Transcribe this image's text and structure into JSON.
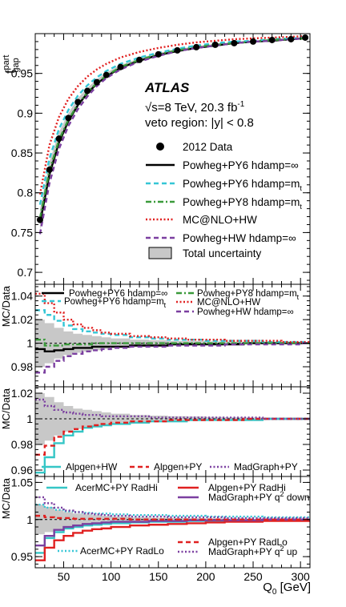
{
  "figure": {
    "xlabel_main": "Q",
    "xlabel_sub": "0",
    "xlabel_unit": " [GeV]"
  },
  "chart_data": [
    {
      "type": "line",
      "panel": "main",
      "ylabel_main": "f",
      "ylabel_sup": "part",
      "ylabel_sub": "gap",
      "xlim": [
        20,
        310
      ],
      "ylim": [
        0.685,
        1.0
      ],
      "grid": false,
      "legend_position": "center-right",
      "x_ticks": [
        50,
        100,
        150,
        200,
        250,
        300
      ],
      "y_ticks": [
        0.7,
        0.75,
        0.8,
        0.85,
        0.9,
        0.95
      ],
      "annotations": {
        "experiment": "ATLAS",
        "energy_prefix": "√s=8 TeV, 20.3 fb",
        "energy_sup": "-1",
        "region": "veto region: |y| < 0.8"
      },
      "x": [
        25,
        35,
        45,
        55,
        65,
        75,
        85,
        95,
        110,
        130,
        150,
        170,
        190,
        210,
        230,
        250,
        270,
        290,
        305
      ],
      "series": [
        {
          "name": "2012 Data",
          "color": "#000000",
          "style": "marker",
          "values": [
            0.766,
            0.829,
            0.868,
            0.894,
            0.914,
            0.928,
            0.939,
            0.948,
            0.958,
            0.967,
            0.974,
            0.979,
            0.983,
            0.986,
            0.988,
            0.99,
            0.992,
            0.993,
            0.995
          ]
        },
        {
          "name": "Powheg+PY6 hdamp=∞",
          "color": "#000000",
          "style": "solid",
          "values": [
            0.762,
            0.823,
            0.863,
            0.89,
            0.91,
            0.925,
            0.937,
            0.946,
            0.957,
            0.966,
            0.973,
            0.978,
            0.982,
            0.985,
            0.988,
            0.99,
            0.991,
            0.993,
            0.994
          ]
        },
        {
          "name": "Powheg+PY6 hdamp=m",
          "name_sub": "t",
          "color": "#35c6d6",
          "style": "dashed",
          "values": [
            0.785,
            0.843,
            0.88,
            0.904,
            0.922,
            0.935,
            0.945,
            0.953,
            0.962,
            0.97,
            0.976,
            0.981,
            0.985,
            0.988,
            0.99,
            0.991,
            0.993,
            0.994,
            0.995
          ]
        },
        {
          "name": "Powheg+PY8 hdamp=m",
          "name_sub": "t",
          "color": "#3a9a3a",
          "style": "dashdot",
          "values": [
            0.768,
            0.828,
            0.866,
            0.892,
            0.911,
            0.926,
            0.938,
            0.947,
            0.958,
            0.967,
            0.974,
            0.979,
            0.983,
            0.986,
            0.988,
            0.99,
            0.992,
            0.993,
            0.994
          ]
        },
        {
          "name": "MC@NLO+HW",
          "color": "#e02020",
          "style": "dotted",
          "values": [
            0.798,
            0.86,
            0.895,
            0.918,
            0.934,
            0.946,
            0.955,
            0.962,
            0.97,
            0.977,
            0.982,
            0.986,
            0.989,
            0.991,
            0.993,
            0.994,
            0.995,
            0.996,
            0.997
          ]
        },
        {
          "name": "Powheg+HW hdamp=∞",
          "color": "#7b3fa0",
          "style": "dashed",
          "values": [
            0.748,
            0.812,
            0.855,
            0.884,
            0.905,
            0.921,
            0.934,
            0.944,
            0.955,
            0.965,
            0.972,
            0.978,
            0.982,
            0.985,
            0.988,
            0.99,
            0.991,
            0.993,
            0.994
          ]
        }
      ],
      "uncertainty_band": {
        "name": "Total uncertainty",
        "color": "#c8c8c8",
        "rel": [
          0.013,
          0.01,
          0.008,
          0.006,
          0.005,
          0.004,
          0.0035,
          0.003,
          0.0025,
          0.002,
          0.0018,
          0.0015,
          0.0012,
          0.001,
          0.001,
          0.001,
          0.001,
          0.001,
          0.001
        ]
      }
    },
    {
      "type": "line",
      "panel": "ratio-1",
      "ylabel": "MC/Data",
      "xlim": [
        20,
        310
      ],
      "ylim": [
        0.963,
        1.05
      ],
      "y_ticks": [
        0.98,
        1,
        1.02,
        1.04
      ],
      "x_edges": [
        20,
        30,
        40,
        50,
        60,
        70,
        80,
        90,
        100,
        120,
        140,
        160,
        180,
        200,
        220,
        240,
        260,
        280,
        300,
        310
      ],
      "band": [
        0.02,
        0.017,
        0.013,
        0.01,
        0.008,
        0.007,
        0.006,
        0.005,
        0.004,
        0.003,
        0.0025,
        0.002,
        0.0018,
        0.0015,
        0.0012,
        0.001,
        0.001,
        0.001,
        0.001
      ],
      "series": [
        {
          "name": "Powheg+PY6 hdamp=∞",
          "color": "#000000",
          "style": "solid",
          "values": [
            0.995,
            0.993,
            0.994,
            0.995,
            0.996,
            0.996,
            0.997,
            0.997,
            0.997,
            0.998,
            0.998,
            0.999,
            0.999,
            0.999,
            0.999,
            1.0,
            1.0,
            1.0,
            1.0
          ]
        },
        {
          "name": "Powheg+PY6 hdamp=m",
          "name_sub": "t",
          "color": "#35c6d6",
          "style": "dashed",
          "values": [
            1.028,
            1.024,
            1.019,
            1.015,
            1.012,
            1.01,
            1.009,
            1.008,
            1.007,
            1.005,
            1.004,
            1.003,
            1.003,
            1.002,
            1.002,
            1.002,
            1.001,
            1.001,
            1.001
          ]
        },
        {
          "name": "Powheg+PY8 hdamp=m",
          "name_sub": "t",
          "color": "#3a9a3a",
          "style": "dashdot",
          "values": [
            1.003,
            0.998,
            0.998,
            0.999,
            0.999,
            0.999,
            1.0,
            1.0,
            1.0,
            1.0,
            1.0,
            1.0,
            1.0,
            1.0,
            1.0,
            1.0,
            1.0,
            1.0,
            1.0
          ]
        },
        {
          "name": "MC@NLO+HW",
          "color": "#e02020",
          "style": "dotted",
          "values": [
            1.042,
            1.034,
            1.026,
            1.02,
            1.016,
            1.013,
            1.011,
            1.009,
            1.008,
            1.006,
            1.005,
            1.004,
            1.003,
            1.003,
            1.002,
            1.002,
            1.002,
            1.001,
            1.001
          ]
        },
        {
          "name": "Powheg+HW  hdamp=∞",
          "color": "#7b3fa0",
          "style": "dashed",
          "values": [
            0.975,
            0.98,
            0.985,
            0.989,
            0.991,
            0.993,
            0.994,
            0.995,
            0.996,
            0.997,
            0.997,
            0.998,
            0.998,
            0.998,
            0.999,
            0.999,
            0.999,
            0.999,
            1.0
          ]
        }
      ]
    },
    {
      "type": "line",
      "panel": "ratio-2",
      "ylabel": "MC/Data",
      "xlim": [
        20,
        310
      ],
      "ylim": [
        0.955,
        1.025
      ],
      "y_ticks": [
        0.96,
        0.98,
        1,
        1.02
      ],
      "x_edges": [
        20,
        30,
        40,
        50,
        60,
        70,
        80,
        90,
        100,
        120,
        140,
        160,
        180,
        200,
        220,
        240,
        260,
        280,
        300,
        310
      ],
      "band": [
        0.02,
        0.017,
        0.013,
        0.01,
        0.008,
        0.007,
        0.006,
        0.005,
        0.004,
        0.003,
        0.0025,
        0.002,
        0.0018,
        0.0015,
        0.0012,
        0.001,
        0.001,
        0.001,
        0.001
      ],
      "series": [
        {
          "name": "Alpgen+HW",
          "color": "#35c6c6",
          "style": "solid",
          "values": [
            0.958,
            0.97,
            0.981,
            0.987,
            0.99,
            0.993,
            0.994,
            0.995,
            0.996,
            0.997,
            0.998,
            0.998,
            0.999,
            0.999,
            0.999,
            0.999,
            1.0,
            1.0,
            1.0
          ]
        },
        {
          "name": "Alpgen+PY",
          "color": "#e02020",
          "style": "dashed",
          "values": [
            0.972,
            0.979,
            0.986,
            0.99,
            0.992,
            0.994,
            0.995,
            0.996,
            0.997,
            0.998,
            0.998,
            0.999,
            0.999,
            0.999,
            0.999,
            1.0,
            1.0,
            1.0,
            1.0
          ]
        },
        {
          "name": "MadGraph+PY",
          "color": "#7b3fa0",
          "style": "dotted",
          "values": [
            1.015,
            1.01,
            1.007,
            1.005,
            1.004,
            1.003,
            1.003,
            1.002,
            1.002,
            1.002,
            1.001,
            1.001,
            1.001,
            1.001,
            1.001,
            1.001,
            1.0,
            1.0,
            1.0
          ]
        }
      ]
    },
    {
      "type": "line",
      "panel": "ratio-3",
      "ylabel": "MC/Data",
      "xlim": [
        20,
        310
      ],
      "ylim": [
        0.935,
        1.058
      ],
      "y_ticks": [
        0.95,
        1,
        1.05
      ],
      "x_ticks": [
        50,
        100,
        150,
        200,
        250,
        300
      ],
      "x_edges": [
        20,
        30,
        40,
        50,
        60,
        70,
        80,
        90,
        100,
        120,
        140,
        160,
        180,
        200,
        220,
        240,
        260,
        280,
        300,
        310
      ],
      "band": [
        0.02,
        0.017,
        0.013,
        0.01,
        0.008,
        0.007,
        0.006,
        0.005,
        0.004,
        0.003,
        0.0025,
        0.002,
        0.0018,
        0.0015,
        0.0012,
        0.001,
        0.001,
        0.001,
        0.001
      ],
      "series": [
        {
          "name": "AcerMC+PY RadHi",
          "color": "#35c6c6",
          "style": "solid",
          "values": [
            0.955,
            0.975,
            0.983,
            0.988,
            0.99,
            0.992,
            0.993,
            0.994,
            0.995,
            0.996,
            0.997,
            0.997,
            0.998,
            0.998,
            0.999,
            0.999,
            0.999,
            0.999,
            0.999
          ]
        },
        {
          "name": "Alpgen+PY RadHi",
          "color": "#e02020",
          "style": "solid",
          "values": [
            0.945,
            0.962,
            0.972,
            0.978,
            0.982,
            0.985,
            0.987,
            0.988,
            0.99,
            0.992,
            0.993,
            0.994,
            0.995,
            0.996,
            0.997,
            0.997,
            0.998,
            0.998,
            0.998
          ]
        },
        {
          "name": "MadGraph+PY q",
          "name_sup": "2",
          "name_suffix": " down",
          "color": "#7b3fa0",
          "style": "solid",
          "values": [
            0.965,
            0.978,
            0.986,
            0.99,
            0.992,
            0.994,
            0.995,
            0.996,
            0.997,
            0.997,
            0.998,
            0.998,
            0.999,
            0.999,
            0.999,
            0.999,
            1.0,
            1.0,
            1.0
          ]
        },
        {
          "name": "AcerMC+PY RadLo",
          "color": "#35c6d6",
          "style": "dotted",
          "values": [
            1.02,
            1.016,
            1.013,
            1.011,
            1.01,
            1.009,
            1.008,
            1.008,
            1.007,
            1.006,
            1.006,
            1.005,
            1.005,
            1.004,
            1.004,
            1.004,
            1.003,
            1.003,
            1.003
          ]
        },
        {
          "name": "Alpgen+PY RadLo",
          "color": "#e02020",
          "style": "dashed",
          "values": [
            1.005,
            1.003,
            1.002,
            1.002,
            1.001,
            1.001,
            1.001,
            1.001,
            1.001,
            1.0,
            1.0,
            1.0,
            1.0,
            1.0,
            1.0,
            1.0,
            1.0,
            1.0,
            1.0
          ]
        },
        {
          "name": "MadGraph+PY q",
          "name_sup": "2",
          "name_suffix": " up",
          "color": "#7b3fa0",
          "style": "dotted",
          "values": [
            1.03,
            1.022,
            1.016,
            1.012,
            1.01,
            1.008,
            1.007,
            1.006,
            1.005,
            1.004,
            1.004,
            1.003,
            1.003,
            1.003,
            1.002,
            1.002,
            1.002,
            1.002,
            1.002
          ]
        }
      ]
    }
  ]
}
